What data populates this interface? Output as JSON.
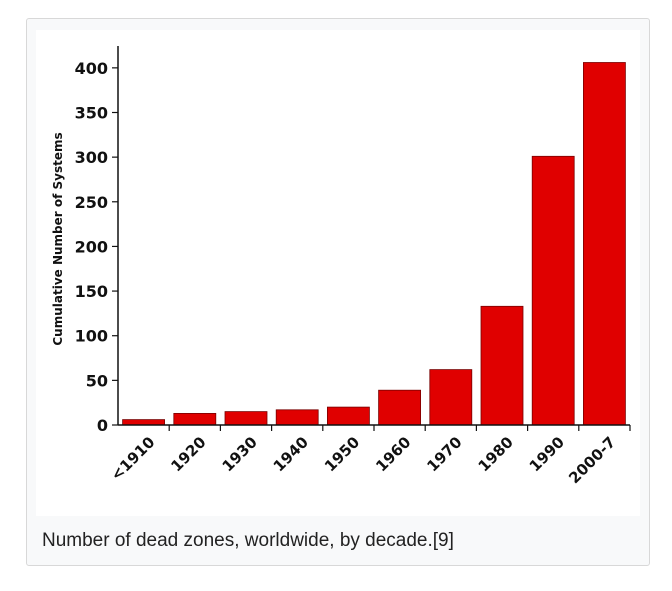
{
  "caption": "Number of dead zones, worldwide, by decade.[9]",
  "chart_data": {
    "type": "bar",
    "title": "",
    "xlabel": "",
    "ylabel": "Cumulative Number of Systems",
    "categories": [
      "<1910",
      "1920",
      "1930",
      "1940",
      "1950",
      "1960",
      "1970",
      "1980",
      "1990",
      "2000-7"
    ],
    "values": [
      6,
      13,
      15,
      17,
      20,
      39,
      62,
      133,
      301,
      406
    ],
    "ylim": [
      0,
      420
    ],
    "yticks": [
      0,
      50,
      100,
      150,
      200,
      250,
      300,
      350,
      400
    ],
    "bar_color": "#e00000",
    "grid": false,
    "legend": "none"
  }
}
